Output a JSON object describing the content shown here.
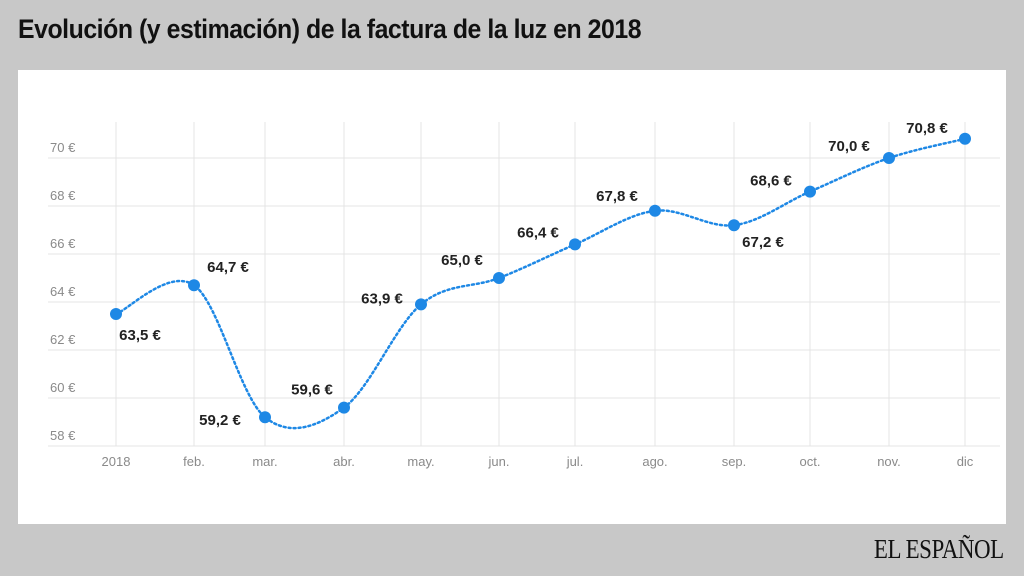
{
  "chart_data": {
    "type": "line",
    "title": "Evolución (y estimación) de la factura de la luz en 2018",
    "categories": [
      "2018",
      "feb.",
      "mar.",
      "abr.",
      "may.",
      "jun.",
      "jul.",
      "ago.",
      "sep.",
      "oct.",
      "nov.",
      "dic"
    ],
    "values": [
      63.5,
      64.7,
      59.2,
      59.6,
      63.9,
      65.0,
      66.4,
      67.8,
      67.2,
      68.6,
      70.0,
      70.8
    ],
    "data_labels": [
      "63,5 €",
      "64,7 €",
      "59,2 €",
      "59,6 €",
      "63,9 €",
      "65,0 €",
      "66,4 €",
      "67,8 €",
      "67,2 €",
      "68,6 €",
      "70,0 €",
      "70,8 €"
    ],
    "yticks": [
      58,
      60,
      62,
      64,
      66,
      68,
      70
    ],
    "ytick_labels": [
      "58 €",
      "60 €",
      "62 €",
      "64 €",
      "66 €",
      "68 €",
      "70 €"
    ],
    "ylim": [
      58,
      71
    ],
    "grid": true,
    "line_style": "dotted smooth",
    "series_color": "#1e88e5",
    "xlabel": "",
    "ylabel": ""
  },
  "footer": {
    "logo": "EL ESPAÑOL"
  }
}
